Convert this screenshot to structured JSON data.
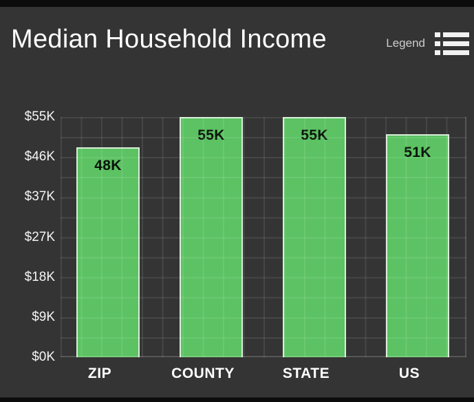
{
  "header": {
    "title": "Median Household Income",
    "legend": {
      "label": "Legend",
      "icon": "list-icon"
    }
  },
  "chart_data": {
    "type": "bar",
    "title": "Median Household Income",
    "categories": [
      "ZIP",
      "COUNTY",
      "STATE",
      "US"
    ],
    "values": [
      48,
      55,
      55,
      51
    ],
    "unit": "K",
    "bar_labels": [
      "48K",
      "55K",
      "55K",
      "51K"
    ],
    "ytick_labels": [
      "$55K",
      "$46K",
      "$37K",
      "$27K",
      "$18K",
      "$9K",
      "$0K"
    ],
    "ylim": [
      0,
      55
    ],
    "grid": true,
    "legend_position": "top-right"
  },
  "colors": {
    "background": "#343434",
    "frame_bars": "#0c0c0c",
    "bar_fill": "#5cc263",
    "bar_border": "#d9eed9",
    "bar_label_text": "#0a140a",
    "grid_line": "rgba(255,255,255,0.09)",
    "title_text": "#fdfdfd",
    "axis_text": "#f5f5f5",
    "legend_text": "#cdcdcd",
    "icon_color": "#f2f2f2"
  }
}
